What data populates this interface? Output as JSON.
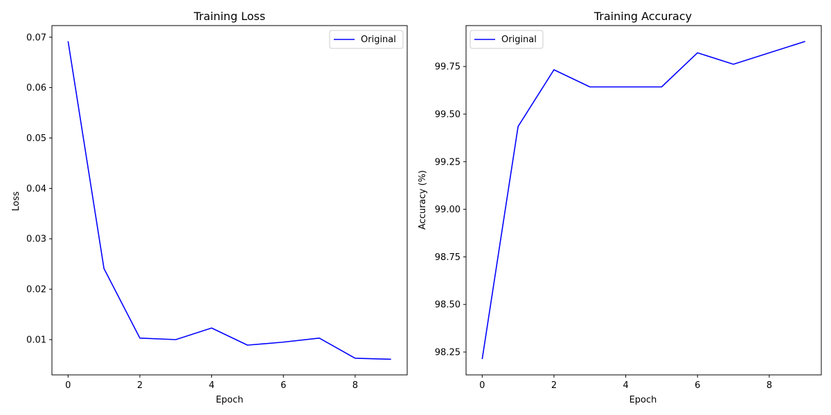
{
  "chart_data": [
    {
      "type": "line",
      "title": "Training Loss",
      "xlabel": "Epoch",
      "ylabel": "Loss",
      "x": [
        0,
        1,
        2,
        3,
        4,
        5,
        6,
        7,
        8,
        9
      ],
      "series": [
        {
          "name": "Original",
          "color": "#0000ff",
          "values": [
            0.0692,
            0.0241,
            0.0103,
            0.01,
            0.0123,
            0.0089,
            0.0095,
            0.0103,
            0.0063,
            0.0061
          ]
        }
      ],
      "xlim": [
        -0.45,
        9.45
      ],
      "ylim": [
        0.003,
        0.0723
      ],
      "xticks": [
        0,
        2,
        4,
        6,
        8
      ],
      "xtick_labels": [
        "0",
        "2",
        "4",
        "6",
        "8"
      ],
      "yticks": [
        0.01,
        0.02,
        0.03,
        0.04,
        0.05,
        0.06,
        0.07
      ],
      "ytick_labels": [
        "0.01",
        "0.02",
        "0.03",
        "0.04",
        "0.05",
        "0.06",
        "0.07"
      ],
      "grid": false,
      "legend_position": "top-right"
    },
    {
      "type": "line",
      "title": "Training Accuracy",
      "xlabel": "Epoch",
      "ylabel": "Accuracy (%)",
      "x": [
        0,
        1,
        2,
        3,
        4,
        5,
        6,
        7,
        8,
        9
      ],
      "series": [
        {
          "name": "Original",
          "color": "#0000ff",
          "values": [
            98.213,
            99.435,
            99.733,
            99.643,
            99.643,
            99.643,
            99.822,
            99.762,
            99.822,
            99.882
          ]
        }
      ],
      "xlim": [
        -0.45,
        9.45
      ],
      "ylim": [
        98.13,
        99.965
      ],
      "xticks": [
        0,
        2,
        4,
        6,
        8
      ],
      "xtick_labels": [
        "0",
        "2",
        "4",
        "6",
        "8"
      ],
      "yticks": [
        98.25,
        98.5,
        98.75,
        99.0,
        99.25,
        99.5,
        99.75
      ],
      "ytick_labels": [
        "98.25",
        "98.50",
        "98.75",
        "99.00",
        "99.25",
        "99.50",
        "99.75"
      ],
      "grid": false,
      "legend_position": "top-left"
    }
  ]
}
